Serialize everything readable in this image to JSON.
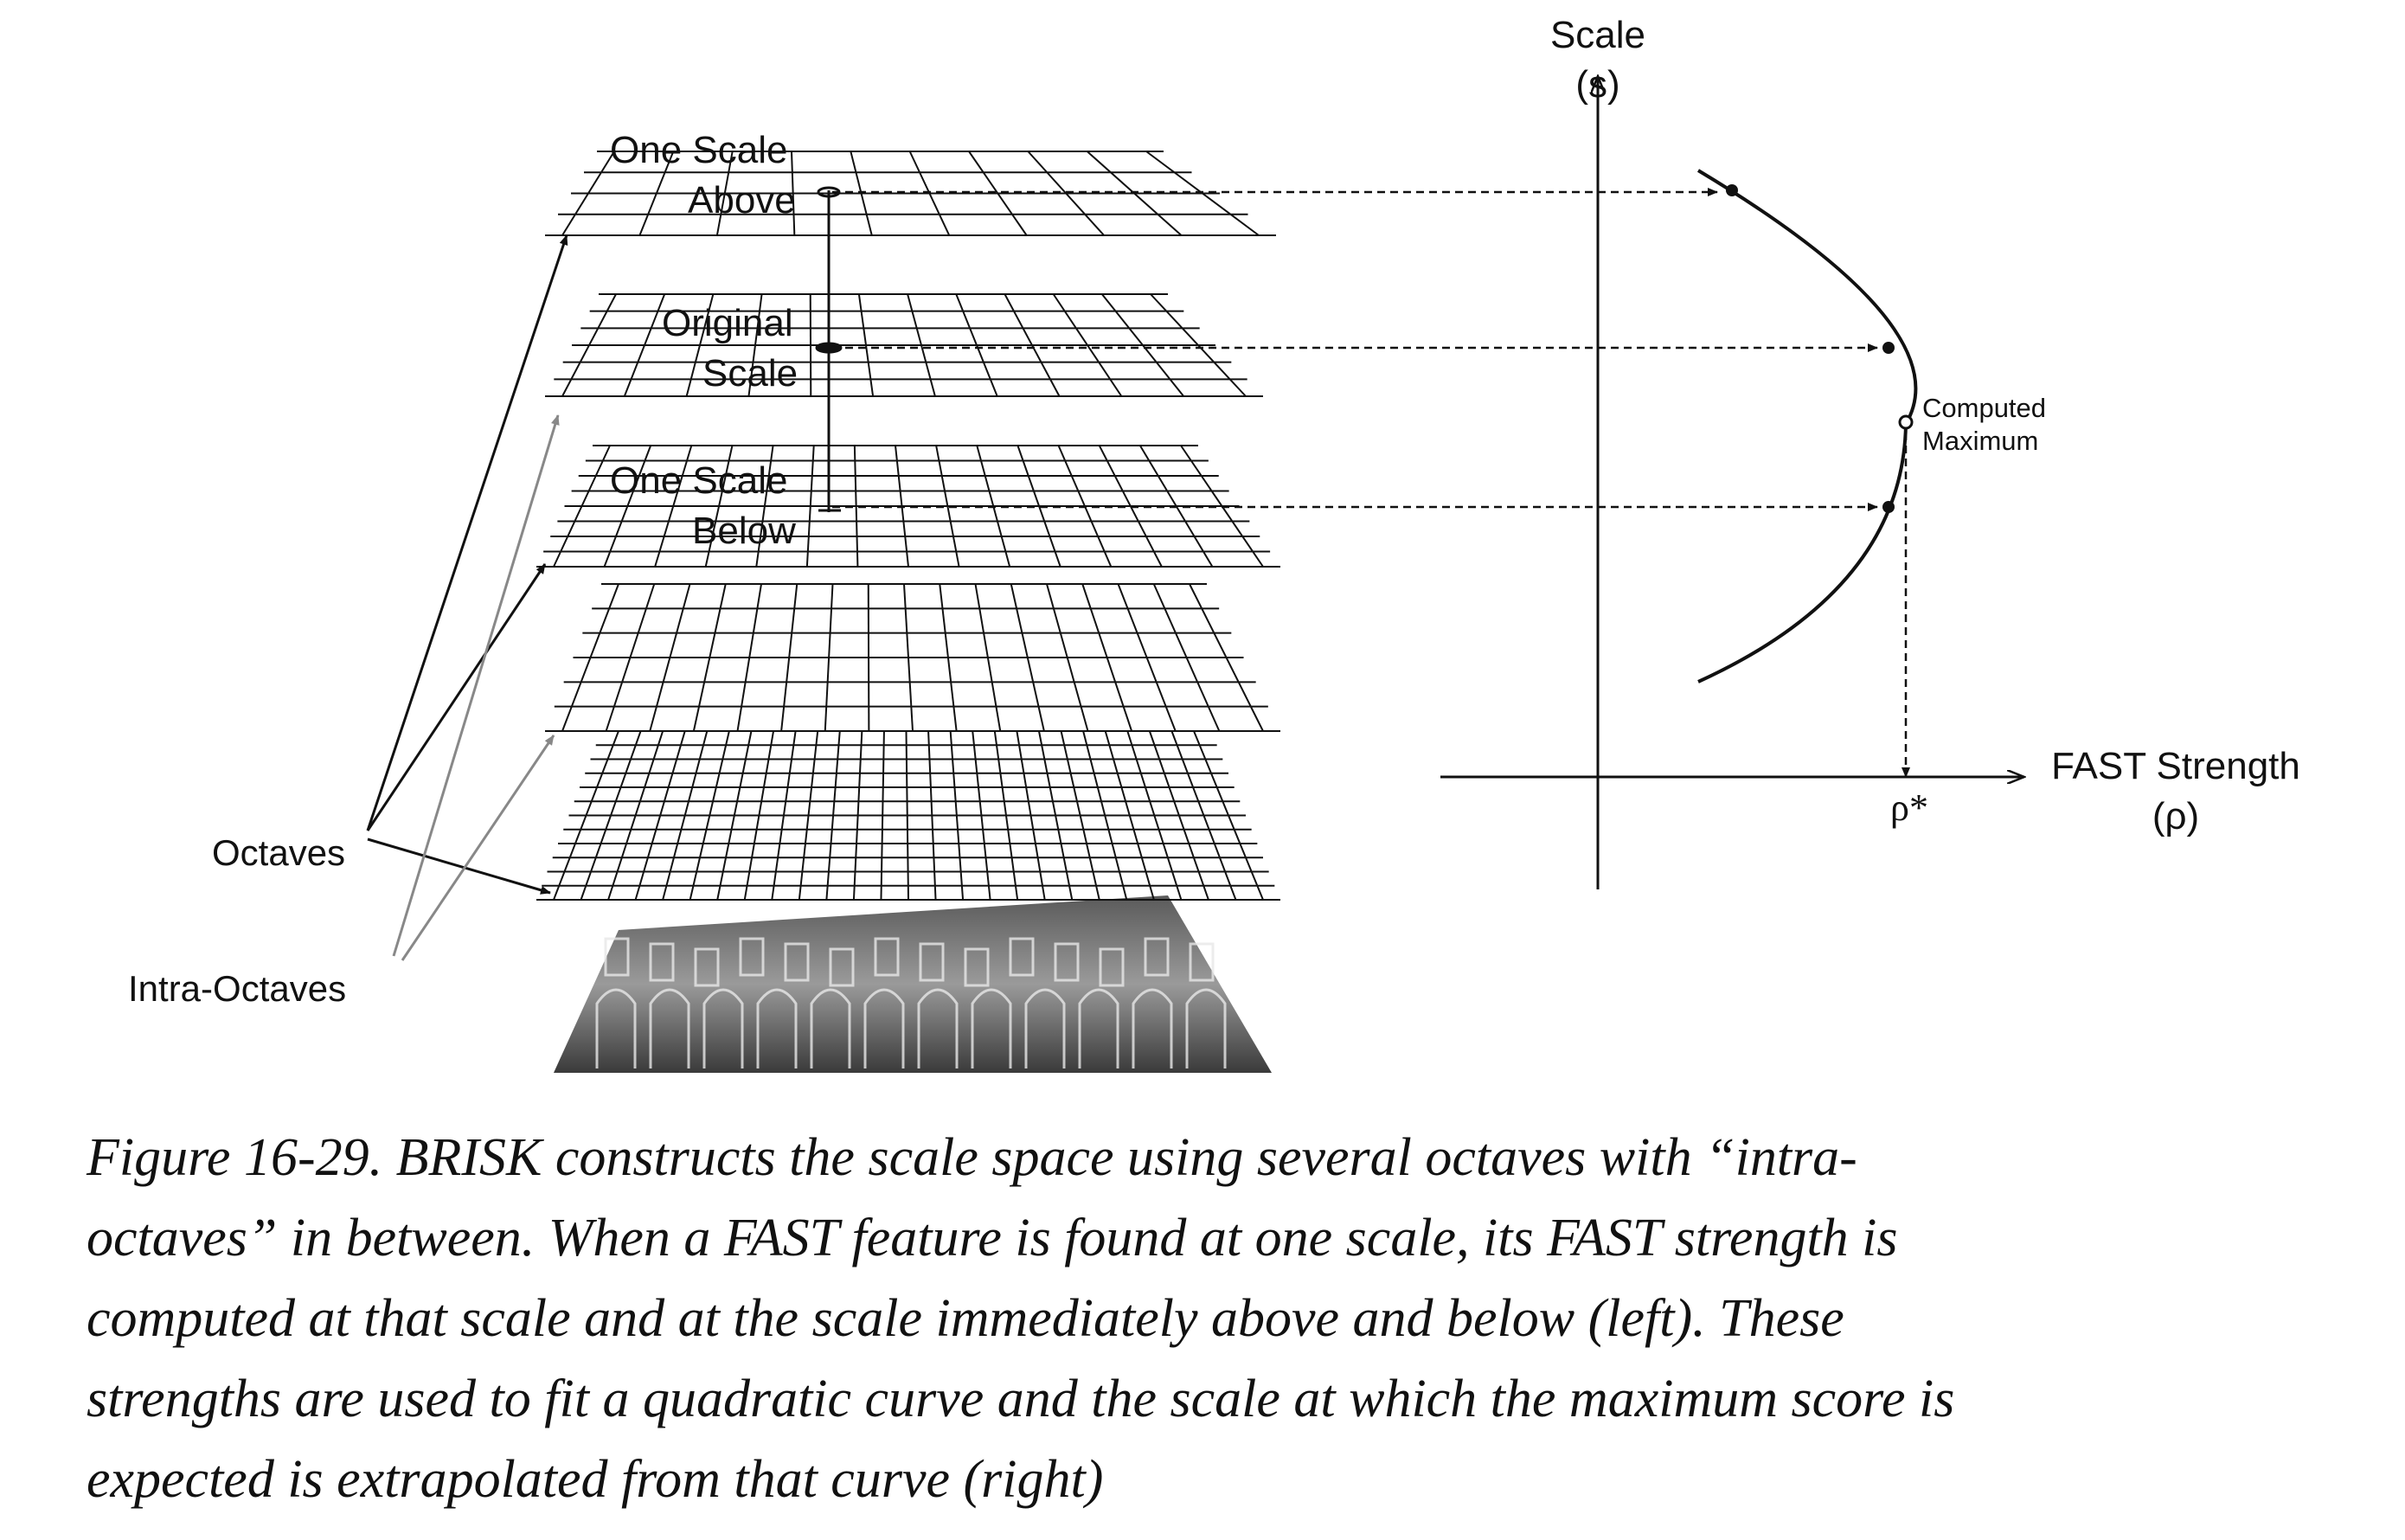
{
  "diagram": {
    "levels": {
      "above": [
        "One Scale",
        "Above"
      ],
      "original": [
        "Original",
        "Scale"
      ],
      "below": [
        "One Scale",
        "Below"
      ]
    },
    "legend": {
      "octaves": "Octaves",
      "intra_octaves": "Intra-Octaves"
    },
    "graph": {
      "y_axis": [
        "Scale",
        "(s)"
      ],
      "x_axis": [
        "FAST Strength",
        "(ρ)"
      ],
      "max_label": [
        "Computed",
        "Maximum"
      ],
      "rho_star": "ρ*"
    },
    "colors": {
      "octave_arrow": "#111111",
      "intra_octave_arrow": "#888888"
    }
  },
  "caption": {
    "lines": [
      "Figure 16-29. BRISK constructs the scale space using several octaves with “intra-",
      "octaves” in between. When a FAST feature is found at one scale, its FAST strength is",
      "computed at that scale and at the scale immediately above and below (left). These",
      "strengths are used to fit a quadratic curve and the scale at which the maximum score is",
      "expected is extrapolated from that curve (right)"
    ]
  }
}
